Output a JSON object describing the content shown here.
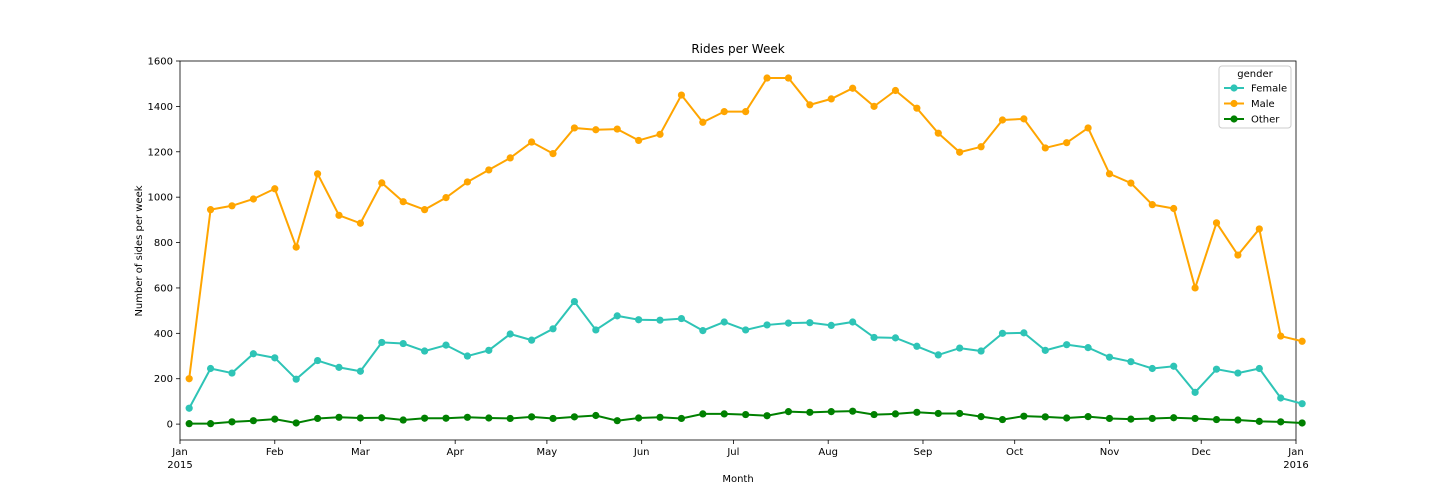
{
  "chart_data": {
    "type": "line",
    "title": "Rides per Week",
    "xlabel": "Month",
    "ylabel": "Number of sides per week",
    "ylim": [
      -70,
      1600
    ],
    "xlim": [
      "2015-01-01",
      "2016-01-01"
    ],
    "yticks": [
      0,
      200,
      400,
      600,
      800,
      1000,
      1200,
      1400,
      1600
    ],
    "xticks": [
      {
        "date": "2015-01-01",
        "label": "Jan",
        "sublabel": "2015"
      },
      {
        "date": "2015-02-01",
        "label": "Feb",
        "sublabel": ""
      },
      {
        "date": "2015-03-01",
        "label": "Mar",
        "sublabel": ""
      },
      {
        "date": "2015-04-01",
        "label": "Apr",
        "sublabel": ""
      },
      {
        "date": "2015-05-01",
        "label": "May",
        "sublabel": ""
      },
      {
        "date": "2015-06-01",
        "label": "Jun",
        "sublabel": ""
      },
      {
        "date": "2015-07-01",
        "label": "Jul",
        "sublabel": ""
      },
      {
        "date": "2015-08-01",
        "label": "Aug",
        "sublabel": ""
      },
      {
        "date": "2015-09-01",
        "label": "Sep",
        "sublabel": ""
      },
      {
        "date": "2015-10-01",
        "label": "Oct",
        "sublabel": ""
      },
      {
        "date": "2015-11-01",
        "label": "Nov",
        "sublabel": ""
      },
      {
        "date": "2015-12-01",
        "label": "Dec",
        "sublabel": ""
      },
      {
        "date": "2016-01-01",
        "label": "Jan",
        "sublabel": "2016"
      }
    ],
    "grid": false,
    "legend": {
      "title": "gender",
      "placement": "top-right"
    },
    "x": [
      "2015-01-04",
      "2015-01-11",
      "2015-01-18",
      "2015-01-25",
      "2015-02-01",
      "2015-02-08",
      "2015-02-15",
      "2015-02-22",
      "2015-03-01",
      "2015-03-08",
      "2015-03-15",
      "2015-03-22",
      "2015-03-29",
      "2015-04-05",
      "2015-04-12",
      "2015-04-19",
      "2015-04-26",
      "2015-05-03",
      "2015-05-10",
      "2015-05-17",
      "2015-05-24",
      "2015-05-31",
      "2015-06-07",
      "2015-06-14",
      "2015-06-21",
      "2015-06-28",
      "2015-07-05",
      "2015-07-12",
      "2015-07-19",
      "2015-07-26",
      "2015-08-02",
      "2015-08-09",
      "2015-08-16",
      "2015-08-23",
      "2015-08-30",
      "2015-09-06",
      "2015-09-13",
      "2015-09-20",
      "2015-09-27",
      "2015-10-04",
      "2015-10-11",
      "2015-10-18",
      "2015-10-25",
      "2015-11-01",
      "2015-11-08",
      "2015-11-15",
      "2015-11-22",
      "2015-11-29",
      "2015-12-06",
      "2015-12-13",
      "2015-12-20",
      "2015-12-27",
      "2016-01-03"
    ],
    "series": [
      {
        "name": "Female",
        "color": "#2ec4b6",
        "values": [
          70,
          245,
          225,
          310,
          292,
          198,
          280,
          250,
          233,
          360,
          355,
          322,
          348,
          300,
          325,
          397,
          370,
          420,
          540,
          415,
          477,
          460,
          458,
          465,
          412,
          450,
          415,
          437,
          445,
          447,
          435,
          450,
          382,
          380,
          343,
          305,
          335,
          322,
          400,
          402,
          325,
          350,
          337,
          295,
          275,
          245,
          255,
          140,
          242,
          225,
          245,
          115,
          90
        ]
      },
      {
        "name": "Male",
        "color": "#ffa500",
        "values": [
          200,
          945,
          962,
          992,
          1037,
          780,
          1103,
          920,
          885,
          1063,
          980,
          945,
          998,
          1067,
          1120,
          1173,
          1243,
          1192,
          1305,
          1297,
          1300,
          1250,
          1277,
          1450,
          1330,
          1377,
          1377,
          1525,
          1525,
          1407,
          1433,
          1480,
          1400,
          1470,
          1392,
          1282,
          1198,
          1222,
          1340,
          1345,
          1217,
          1240,
          1305,
          1103,
          1062,
          967,
          950,
          600,
          887,
          745,
          860,
          388,
          365
        ]
      },
      {
        "name": "Other",
        "color": "#008000",
        "values": [
          2,
          2,
          10,
          15,
          22,
          5,
          25,
          30,
          27,
          28,
          18,
          26,
          26,
          30,
          27,
          25,
          32,
          25,
          32,
          38,
          15,
          27,
          30,
          25,
          45,
          45,
          42,
          37,
          55,
          52,
          55,
          57,
          42,
          45,
          52,
          47,
          47,
          33,
          20,
          35,
          32,
          27,
          33,
          25,
          22,
          25,
          28,
          25,
          20,
          18,
          12,
          10,
          5
        ]
      }
    ]
  }
}
